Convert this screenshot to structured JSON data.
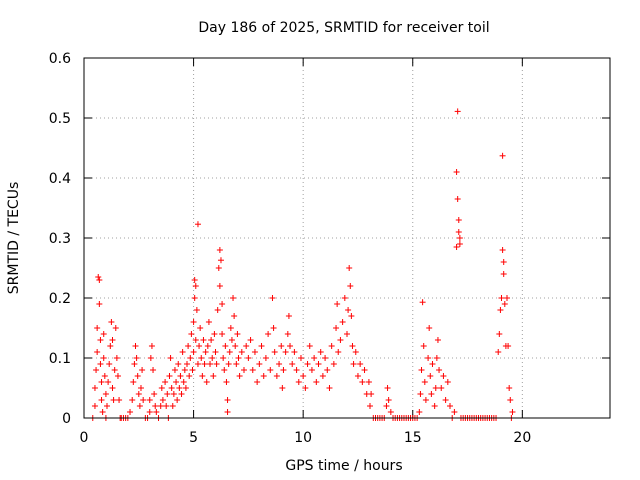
{
  "chart_data": {
    "type": "scatter",
    "title": "Day 186 of 2025, SRMTID for receiver toil",
    "xlabel": "GPS time / hours",
    "ylabel": "SRMTID / TECUs",
    "xlim": [
      0,
      24
    ],
    "ylim": [
      0,
      0.6
    ],
    "xticks": [
      0,
      5,
      10,
      15,
      20
    ],
    "yticks": [
      0,
      0.1,
      0.2,
      0.3,
      0.4,
      0.5,
      0.6
    ],
    "grid": true,
    "marker": "+",
    "series": [
      {
        "name": "SRMTID",
        "color": "#ff0000",
        "points": [
          [
            0.4,
            0.0
          ],
          [
            0.5,
            0.02
          ],
          [
            0.5,
            0.05
          ],
          [
            0.55,
            0.08
          ],
          [
            0.6,
            0.11
          ],
          [
            0.6,
            0.15
          ],
          [
            0.65,
            0.235
          ],
          [
            0.7,
            0.23
          ],
          [
            0.7,
            0.19
          ],
          [
            0.75,
            0.13
          ],
          [
            0.75,
            0.09
          ],
          [
            0.8,
            0.06
          ],
          [
            0.8,
            0.03
          ],
          [
            0.85,
            0.01
          ],
          [
            0.9,
            0.1
          ],
          [
            0.9,
            0.14
          ],
          [
            0.95,
            0.07
          ],
          [
            1.0,
            0.04
          ],
          [
            1.0,
            0.0
          ],
          [
            1.05,
            0.02
          ],
          [
            1.1,
            0.06
          ],
          [
            1.15,
            0.09
          ],
          [
            1.2,
            0.12
          ],
          [
            1.25,
            0.16
          ],
          [
            1.3,
            0.13
          ],
          [
            1.3,
            0.05
          ],
          [
            1.35,
            0.03
          ],
          [
            1.4,
            0.08
          ],
          [
            1.45,
            0.15
          ],
          [
            1.5,
            0.1
          ],
          [
            1.55,
            0.07
          ],
          [
            1.6,
            0.03
          ],
          [
            1.65,
            0.0
          ],
          [
            1.7,
            0.0
          ],
          [
            1.8,
            0.0
          ],
          [
            1.9,
            0.0
          ],
          [
            2.0,
            0.0
          ],
          [
            2.1,
            0.01
          ],
          [
            2.2,
            0.03
          ],
          [
            2.25,
            0.06
          ],
          [
            2.3,
            0.09
          ],
          [
            2.35,
            0.12
          ],
          [
            2.4,
            0.1
          ],
          [
            2.45,
            0.07
          ],
          [
            2.5,
            0.04
          ],
          [
            2.55,
            0.02
          ],
          [
            2.6,
            0.05
          ],
          [
            2.65,
            0.08
          ],
          [
            2.7,
            0.03
          ],
          [
            2.8,
            0.0
          ],
          [
            2.9,
            0.0
          ],
          [
            3.0,
            0.01
          ],
          [
            3.0,
            0.03
          ],
          [
            3.05,
            0.1
          ],
          [
            3.1,
            0.12
          ],
          [
            3.15,
            0.08
          ],
          [
            3.2,
            0.04
          ],
          [
            3.25,
            0.02
          ],
          [
            3.3,
            0.01
          ],
          [
            3.4,
            0.0
          ],
          [
            3.5,
            0.02
          ],
          [
            3.55,
            0.05
          ],
          [
            3.6,
            0.03
          ],
          [
            3.7,
            0.06
          ],
          [
            3.75,
            0.02
          ],
          [
            3.8,
            0.04
          ],
          [
            3.85,
            0.0
          ],
          [
            3.9,
            0.07
          ],
          [
            3.95,
            0.1
          ],
          [
            4.0,
            0.05
          ],
          [
            4.05,
            0.02
          ],
          [
            4.1,
            0.04
          ],
          [
            4.15,
            0.08
          ],
          [
            4.2,
            0.06
          ],
          [
            4.25,
            0.03
          ],
          [
            4.3,
            0.09
          ],
          [
            4.35,
            0.05
          ],
          [
            4.4,
            0.07
          ],
          [
            4.45,
            0.04
          ],
          [
            4.5,
            0.11
          ],
          [
            4.55,
            0.06
          ],
          [
            4.6,
            0.08
          ],
          [
            4.65,
            0.05
          ],
          [
            4.7,
            0.09
          ],
          [
            4.75,
            0.12
          ],
          [
            4.8,
            0.07
          ],
          [
            4.85,
            0.1
          ],
          [
            4.9,
            0.14
          ],
          [
            4.95,
            0.08
          ],
          [
            5.0,
            0.16
          ],
          [
            5.0,
            0.11
          ],
          [
            5.05,
            0.2
          ],
          [
            5.05,
            0.23
          ],
          [
            5.1,
            0.22
          ],
          [
            5.1,
            0.13
          ],
          [
            5.15,
            0.18
          ],
          [
            5.2,
            0.09
          ],
          [
            5.2,
            0.323
          ],
          [
            5.25,
            0.12
          ],
          [
            5.3,
            0.15
          ],
          [
            5.35,
            0.1
          ],
          [
            5.4,
            0.07
          ],
          [
            5.45,
            0.13
          ],
          [
            5.5,
            0.09
          ],
          [
            5.55,
            0.11
          ],
          [
            5.6,
            0.06
          ],
          [
            5.65,
            0.12
          ],
          [
            5.7,
            0.16
          ],
          [
            5.75,
            0.09
          ],
          [
            5.8,
            0.13
          ],
          [
            5.85,
            0.1
          ],
          [
            5.9,
            0.07
          ],
          [
            5.95,
            0.14
          ],
          [
            6.0,
            0.11
          ],
          [
            6.05,
            0.09
          ],
          [
            6.1,
            0.18
          ],
          [
            6.15,
            0.25
          ],
          [
            6.2,
            0.28
          ],
          [
            6.2,
            0.22
          ],
          [
            6.25,
            0.263
          ],
          [
            6.3,
            0.19
          ],
          [
            6.3,
            0.14
          ],
          [
            6.35,
            0.1
          ],
          [
            6.4,
            0.08
          ],
          [
            6.45,
            0.12
          ],
          [
            6.5,
            0.06
          ],
          [
            6.55,
            0.03
          ],
          [
            6.55,
            0.01
          ],
          [
            6.6,
            0.09
          ],
          [
            6.65,
            0.11
          ],
          [
            6.7,
            0.15
          ],
          [
            6.75,
            0.13
          ],
          [
            6.8,
            0.2
          ],
          [
            6.85,
            0.17
          ],
          [
            6.9,
            0.12
          ],
          [
            6.95,
            0.09
          ],
          [
            7.0,
            0.14
          ],
          [
            7.05,
            0.1
          ],
          [
            7.1,
            0.07
          ],
          [
            7.2,
            0.11
          ],
          [
            7.3,
            0.08
          ],
          [
            7.4,
            0.12
          ],
          [
            7.5,
            0.1
          ],
          [
            7.6,
            0.13
          ],
          [
            7.7,
            0.08
          ],
          [
            7.8,
            0.11
          ],
          [
            7.9,
            0.06
          ],
          [
            8.0,
            0.09
          ],
          [
            8.1,
            0.12
          ],
          [
            8.2,
            0.07
          ],
          [
            8.3,
            0.1
          ],
          [
            8.4,
            0.14
          ],
          [
            8.5,
            0.08
          ],
          [
            8.6,
            0.2
          ],
          [
            8.65,
            0.15
          ],
          [
            8.7,
            0.11
          ],
          [
            8.8,
            0.07
          ],
          [
            8.9,
            0.09
          ],
          [
            9.0,
            0.12
          ],
          [
            9.05,
            0.05
          ],
          [
            9.1,
            0.08
          ],
          [
            9.2,
            0.11
          ],
          [
            9.3,
            0.14
          ],
          [
            9.35,
            0.17
          ],
          [
            9.4,
            0.12
          ],
          [
            9.5,
            0.09
          ],
          [
            9.6,
            0.11
          ],
          [
            9.7,
            0.08
          ],
          [
            9.8,
            0.06
          ],
          [
            9.9,
            0.1
          ],
          [
            10.0,
            0.07
          ],
          [
            10.1,
            0.05
          ],
          [
            10.2,
            0.09
          ],
          [
            10.3,
            0.12
          ],
          [
            10.4,
            0.08
          ],
          [
            10.5,
            0.1
          ],
          [
            10.6,
            0.06
          ],
          [
            10.7,
            0.09
          ],
          [
            10.8,
            0.11
          ],
          [
            10.9,
            0.07
          ],
          [
            11.0,
            0.1
          ],
          [
            11.1,
            0.08
          ],
          [
            11.2,
            0.05
          ],
          [
            11.3,
            0.12
          ],
          [
            11.4,
            0.09
          ],
          [
            11.5,
            0.15
          ],
          [
            11.55,
            0.19
          ],
          [
            11.6,
            0.11
          ],
          [
            11.7,
            0.13
          ],
          [
            11.8,
            0.16
          ],
          [
            11.9,
            0.2
          ],
          [
            12.0,
            0.14
          ],
          [
            12.05,
            0.18
          ],
          [
            12.1,
            0.25
          ],
          [
            12.15,
            0.22
          ],
          [
            12.2,
            0.17
          ],
          [
            12.25,
            0.12
          ],
          [
            12.3,
            0.09
          ],
          [
            12.4,
            0.11
          ],
          [
            12.5,
            0.07
          ],
          [
            12.6,
            0.09
          ],
          [
            12.7,
            0.06
          ],
          [
            12.8,
            0.08
          ],
          [
            12.9,
            0.04
          ],
          [
            13.0,
            0.06
          ],
          [
            13.05,
            0.02
          ],
          [
            13.1,
            0.04
          ],
          [
            13.2,
            0.0
          ],
          [
            13.3,
            0.0
          ],
          [
            13.4,
            0.0
          ],
          [
            13.5,
            0.0
          ],
          [
            13.6,
            0.0
          ],
          [
            13.7,
            0.0
          ],
          [
            13.8,
            0.02
          ],
          [
            13.85,
            0.05
          ],
          [
            13.9,
            0.03
          ],
          [
            14.0,
            0.01
          ],
          [
            14.1,
            0.0
          ],
          [
            14.2,
            0.0
          ],
          [
            14.3,
            0.0
          ],
          [
            14.4,
            0.0
          ],
          [
            14.5,
            0.0
          ],
          [
            14.6,
            0.0
          ],
          [
            14.7,
            0.0
          ],
          [
            14.8,
            0.0
          ],
          [
            14.9,
            0.0
          ],
          [
            15.0,
            0.0
          ],
          [
            15.1,
            0.0
          ],
          [
            15.2,
            0.0
          ],
          [
            15.3,
            0.01
          ],
          [
            15.35,
            0.04
          ],
          [
            15.4,
            0.08
          ],
          [
            15.45,
            0.193
          ],
          [
            15.5,
            0.12
          ],
          [
            15.55,
            0.06
          ],
          [
            15.6,
            0.03
          ],
          [
            15.7,
            0.1
          ],
          [
            15.75,
            0.15
          ],
          [
            15.8,
            0.07
          ],
          [
            15.85,
            0.04
          ],
          [
            15.9,
            0.09
          ],
          [
            16.0,
            0.02
          ],
          [
            16.05,
            0.05
          ],
          [
            16.1,
            0.1
          ],
          [
            16.15,
            0.13
          ],
          [
            16.2,
            0.08
          ],
          [
            16.3,
            0.05
          ],
          [
            16.4,
            0.07
          ],
          [
            16.5,
            0.03
          ],
          [
            16.6,
            0.06
          ],
          [
            16.7,
            0.02
          ],
          [
            16.8,
            0.0
          ],
          [
            16.9,
            0.01
          ],
          [
            17.0,
            0.285
          ],
          [
            17.0,
            0.41
          ],
          [
            17.05,
            0.511
          ],
          [
            17.05,
            0.365
          ],
          [
            17.1,
            0.33
          ],
          [
            17.1,
            0.31
          ],
          [
            17.15,
            0.3
          ],
          [
            17.15,
            0.29
          ],
          [
            17.2,
            0.0
          ],
          [
            17.3,
            0.0
          ],
          [
            17.4,
            0.0
          ],
          [
            17.5,
            0.0
          ],
          [
            17.6,
            0.0
          ],
          [
            17.7,
            0.0
          ],
          [
            17.8,
            0.0
          ],
          [
            17.9,
            0.0
          ],
          [
            18.0,
            0.0
          ],
          [
            18.1,
            0.0
          ],
          [
            18.2,
            0.0
          ],
          [
            18.3,
            0.0
          ],
          [
            18.4,
            0.0
          ],
          [
            18.5,
            0.0
          ],
          [
            18.6,
            0.0
          ],
          [
            18.7,
            0.0
          ],
          [
            18.8,
            0.0
          ],
          [
            18.9,
            0.11
          ],
          [
            18.95,
            0.14
          ],
          [
            19.0,
            0.18
          ],
          [
            19.05,
            0.2
          ],
          [
            19.1,
            0.437
          ],
          [
            19.1,
            0.28
          ],
          [
            19.15,
            0.26
          ],
          [
            19.15,
            0.24
          ],
          [
            19.2,
            0.19
          ],
          [
            19.25,
            0.12
          ],
          [
            19.3,
            0.2
          ],
          [
            19.35,
            0.12
          ],
          [
            19.4,
            0.05
          ],
          [
            19.45,
            0.03
          ],
          [
            19.5,
            0.0
          ],
          [
            19.55,
            0.01
          ]
        ]
      }
    ]
  }
}
